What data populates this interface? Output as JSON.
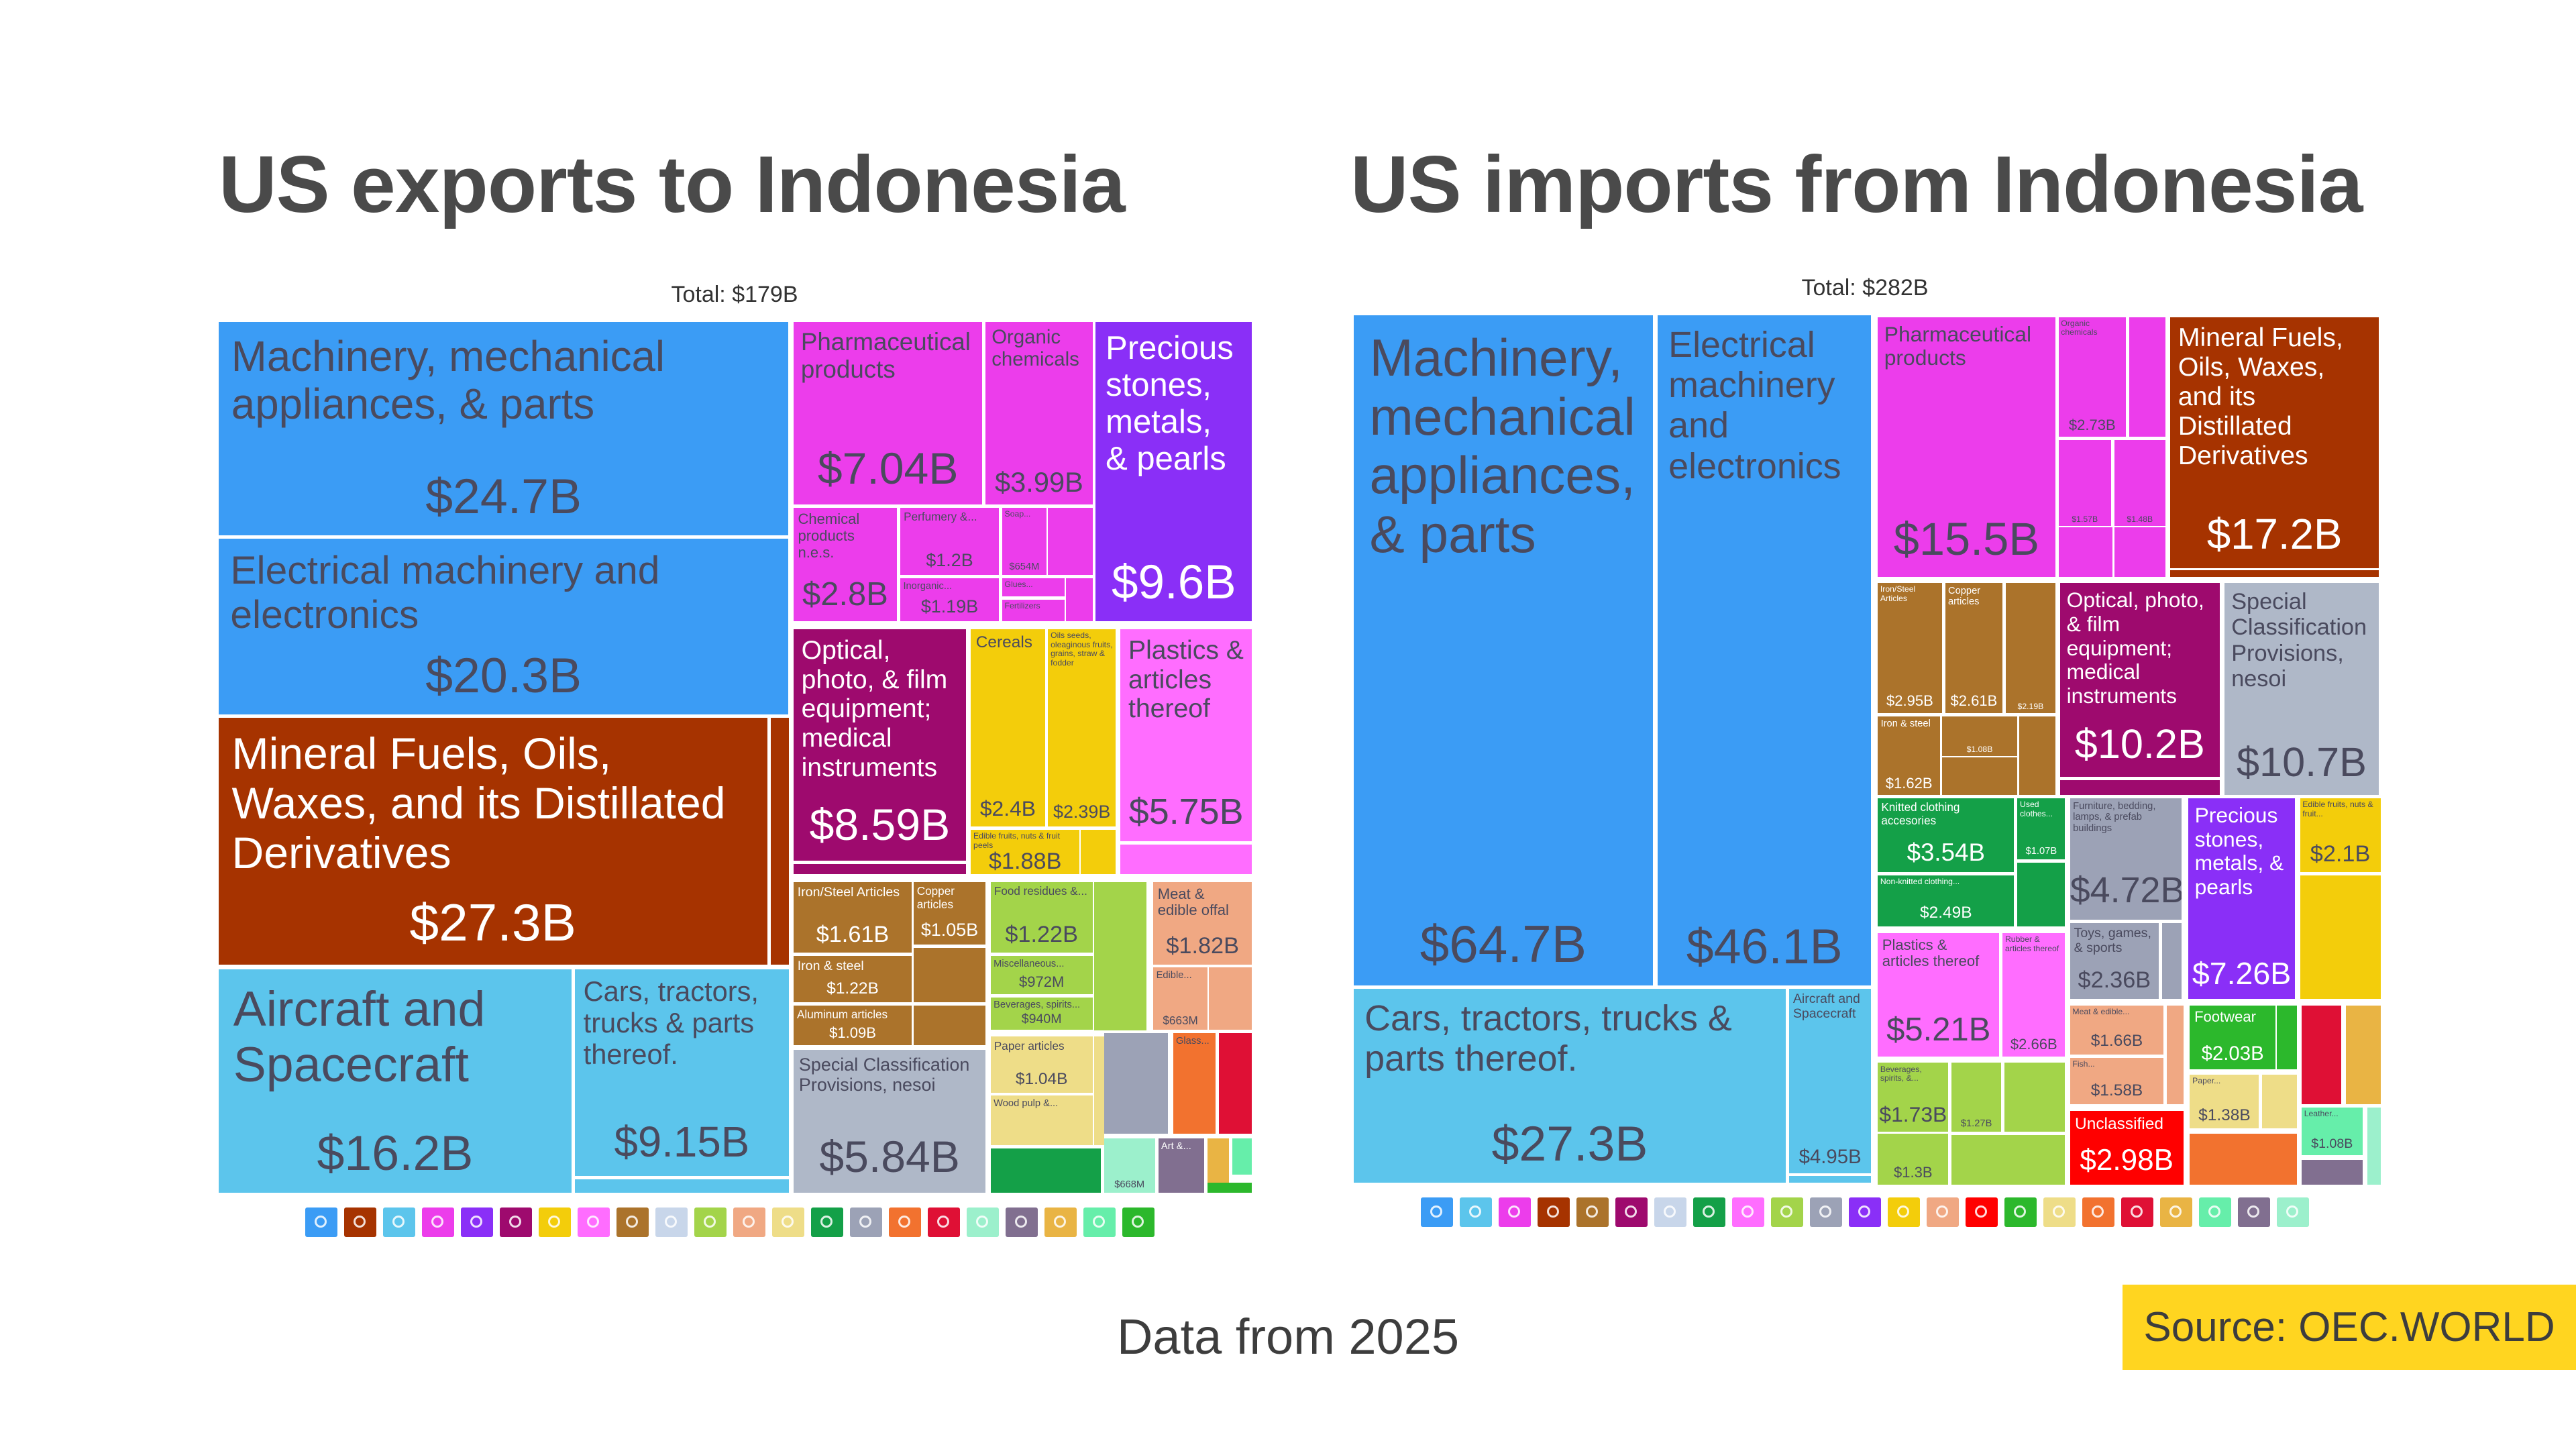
{
  "footer": {
    "note": "Data from 2025",
    "source": "Source: OEC.WORLD"
  },
  "chart_data": [
    {
      "type": "treemap",
      "title": "US exports to Indonesia",
      "total": "Total: $179B",
      "items": [
        {
          "label": "Machinery, mechanical appliances, & parts",
          "value": "$24.7B",
          "color": "#3b9cf5"
        },
        {
          "label": "Electrical machinery and electronics",
          "value": "$20.3B",
          "color": "#3b9cf5"
        },
        {
          "label": "Mineral Fuels, Oils, Waxes, and its Distillated Derivatives",
          "value": "$27.3B",
          "color": "#a63300"
        },
        {
          "color": "#a63300"
        },
        {
          "label": "Aircraft and Spacecraft",
          "value": "$16.2B",
          "color": "#5cc5ec"
        },
        {
          "label": "Cars, tractors, trucks & parts thereof.",
          "value": "$9.15B",
          "color": "#5cc5ec"
        },
        {
          "color": "#5cc5ec"
        },
        {
          "label": "Pharmaceutical products",
          "value": "$7.04B",
          "color": "#ec3deb"
        },
        {
          "label": "Organic chemicals",
          "value": "$3.99B",
          "color": "#ec3deb"
        },
        {
          "label": "Chemical products n.e.s.",
          "value": "$2.8B",
          "color": "#ec3deb"
        },
        {
          "label": "Perfumery &...",
          "value": "$1.2B",
          "color": "#ec3deb"
        },
        {
          "label": "Inorganic...",
          "value": "$1.19B",
          "color": "#ec3deb"
        },
        {
          "label": "Soap...",
          "value": "$654M",
          "color": "#ec3deb"
        },
        {
          "color": "#ec3deb"
        },
        {
          "label": "Glues...",
          "color": "#ec3deb"
        },
        {
          "label": "Fertilizers",
          "color": "#ec3deb"
        },
        {
          "color": "#ec3deb"
        },
        {
          "label": "Precious stones, metals, & pearls",
          "value": "$9.6B",
          "color": "#8a2ff7"
        },
        {
          "label": "Optical, photo, & film equipment; medical instruments",
          "value": "$8.59B",
          "color": "#9e0a6e"
        },
        {
          "color": "#9e0a6e"
        },
        {
          "label": "Cereals",
          "value": "$2.4B",
          "color": "#f3cd0b"
        },
        {
          "label": "Oils seeds, oleaginous fruits, grains, straw & fodder",
          "value": "$2.39B",
          "color": "#f3cd0b"
        },
        {
          "label": "Edible fruits, nuts & fruit peels",
          "value": "$1.88B",
          "color": "#f3cd0b"
        },
        {
          "color": "#f3cd0b"
        },
        {
          "label": "Plastics & articles thereof",
          "value": "$5.75B",
          "color": "#ff6dff"
        },
        {
          "color": "#ff6dff"
        },
        {
          "label": "Iron/Steel Articles",
          "value": "$1.61B",
          "color": "#ab732b"
        },
        {
          "label": "Copper articles",
          "value": "$1.05B",
          "color": "#ab732b"
        },
        {
          "label": "Iron & steel",
          "value": "$1.22B",
          "color": "#ab732b"
        },
        {
          "color": "#ab732b"
        },
        {
          "label": "Aluminum articles",
          "value": "$1.09B",
          "color": "#ab732b"
        },
        {
          "color": "#ab732b"
        },
        {
          "label": "Special Classification Provisions, nesoi",
          "value": "$5.84B",
          "color": "#afb8c8"
        },
        {
          "label": "Food residues &...",
          "value": "$1.22B",
          "color": "#a3d44a"
        },
        {
          "label": "Miscellaneous...",
          "value": "$972M",
          "color": "#a3d44a"
        },
        {
          "label": "Beverages, spirits...",
          "value": "$940M",
          "color": "#a3d44a"
        },
        {
          "color": "#a3d44a"
        },
        {
          "label": "Meat & edible offal",
          "value": "$1.82B",
          "color": "#f0a883"
        },
        {
          "label": "Edible...",
          "value": "$663M",
          "color": "#f0a883"
        },
        {
          "color": "#f0a883"
        },
        {
          "label": "Paper articles",
          "value": "$1.04B",
          "color": "#eedd88"
        },
        {
          "label": "Wood pulp &...",
          "color": "#eedd88"
        },
        {
          "color": "#eedd88"
        },
        {
          "color": "#14a048"
        },
        {
          "color": "#9ca2b6"
        },
        {
          "label": "Glass...",
          "color": "#f2722f"
        },
        {
          "color": "#df1035"
        },
        {
          "value": "$668M",
          "color": "#9cf0cc"
        },
        {
          "label": "Art &...",
          "color": "#816f90"
        },
        {
          "color": "#e9b444"
        },
        {
          "color": "#66eeaa"
        },
        {
          "color": "#2cb82c"
        }
      ],
      "legend_colors": [
        "#3b9cf5",
        "#a63300",
        "#5cc5ec",
        "#ec3deb",
        "#8a2ff7",
        "#9e0a6e",
        "#f3cd0b",
        "#ff6dff",
        "#ab732b",
        "#c8d6ea",
        "#a3d44a",
        "#f0a883",
        "#eedd88",
        "#14a048",
        "#9ca2b6",
        "#f2722f",
        "#df1035",
        "#9cf0cc",
        "#816f90",
        "#e9b444",
        "#66eeaa",
        "#2cb82c"
      ]
    },
    {
      "type": "treemap",
      "title": "US imports from Indonesia",
      "total": "Total: $282B",
      "items": [
        {
          "label": "Machinery, mechanical appliances, & parts",
          "value": "$64.7B",
          "color": "#3b9cf5"
        },
        {
          "label": "Electrical machinery and electronics",
          "value": "$46.1B",
          "color": "#3b9cf5"
        },
        {
          "label": "Cars, tractors, trucks & parts thereof.",
          "value": "$27.3B",
          "color": "#5cc5ec"
        },
        {
          "label": "Aircraft and Spacecraft",
          "value": "$4.95B",
          "color": "#5cc5ec"
        },
        {
          "color": "#5cc5ec"
        },
        {
          "label": "Pharmaceutical products",
          "value": "$15.5B",
          "color": "#ec3deb"
        },
        {
          "label": "Organic chemicals",
          "value": "$2.73B",
          "color": "#ec3deb"
        },
        {
          "color": "#ec3deb"
        },
        {
          "value": "$1.57B",
          "color": "#ec3deb"
        },
        {
          "value": "$1.48B",
          "color": "#ec3deb"
        },
        {
          "color": "#ec3deb"
        },
        {
          "color": "#ec3deb"
        },
        {
          "label": "Mineral Fuels, Oils, Waxes, and its Distillated Derivatives",
          "value": "$17.2B",
          "color": "#a63300"
        },
        {
          "color": "#a63300"
        },
        {
          "label": "Iron/Steel Articles",
          "value": "$2.95B",
          "color": "#ab732b"
        },
        {
          "label": "Copper articles",
          "value": "$2.61B",
          "color": "#ab732b"
        },
        {
          "value": "$2.19B",
          "color": "#ab732b"
        },
        {
          "label": "Iron & steel",
          "value": "$1.62B",
          "color": "#ab732b"
        },
        {
          "value": "$1.08B",
          "color": "#ab732b"
        },
        {
          "color": "#ab732b"
        },
        {
          "color": "#ab732b"
        },
        {
          "label": "Optical, photo, & film equipment; medical instruments",
          "value": "$10.2B",
          "color": "#9e0a6e"
        },
        {
          "color": "#9e0a6e"
        },
        {
          "label": "Special Classification Provisions, nesoi",
          "value": "$10.7B",
          "color": "#afb8c8"
        },
        {
          "label": "Knitted clothing accesories",
          "value": "$3.54B",
          "color": "#14a048"
        },
        {
          "label": "Non-knitted clothing...",
          "value": "$2.49B",
          "color": "#14a048"
        },
        {
          "label": "Used clothes...",
          "value": "$1.07B",
          "color": "#14a048"
        },
        {
          "color": "#14a048"
        },
        {
          "label": "Plastics & articles thereof",
          "value": "$5.21B",
          "color": "#ff6dff"
        },
        {
          "label": "Rubber & articles thereof",
          "value": "$2.66B",
          "color": "#ff6dff"
        },
        {
          "label": "Beverages, spirits, &...",
          "value": "$1.73B",
          "color": "#a3d44a"
        },
        {
          "value": "$1.3B",
          "color": "#a3d44a"
        },
        {
          "value": "$1.27B",
          "color": "#a3d44a"
        },
        {
          "color": "#a3d44a"
        },
        {
          "color": "#a3d44a"
        },
        {
          "label": "Furniture, bedding, lamps, & prefab buildings",
          "value": "$4.72B",
          "color": "#9ca2b6"
        },
        {
          "label": "Toys, games, & sports",
          "value": "$2.36B",
          "color": "#9ca2b6"
        },
        {
          "color": "#9ca2b6"
        },
        {
          "label": "Precious stones, metals, & pearls",
          "value": "$7.26B",
          "color": "#8a2ff7"
        },
        {
          "label": "Edible fruits, nuts & fruit...",
          "value": "$2.1B",
          "color": "#f3cd0b"
        },
        {
          "color": "#f3cd0b"
        },
        {
          "label": "Meat & edible...",
          "value": "$1.66B",
          "color": "#f0a883"
        },
        {
          "label": "Fish...",
          "value": "$1.58B",
          "color": "#f0a883"
        },
        {
          "color": "#f0a883"
        },
        {
          "label": "Unclassified",
          "value": "$2.98B",
          "color": "#ff0000"
        },
        {
          "label": "Footwear",
          "value": "$2.03B",
          "color": "#2cb82c"
        },
        {
          "color": "#2cb82c"
        },
        {
          "label": "Paper...",
          "value": "$1.38B",
          "color": "#eedd88"
        },
        {
          "color": "#eedd88"
        },
        {
          "color": "#f2722f"
        },
        {
          "color": "#df1035"
        },
        {
          "color": "#e9b444"
        },
        {
          "label": "Leather...",
          "value": "$1.08B",
          "color": "#66eeaa"
        },
        {
          "color": "#816f90"
        },
        {
          "color": "#9cf0cc"
        }
      ],
      "legend_colors": [
        "#3b9cf5",
        "#5cc5ec",
        "#ec3deb",
        "#a63300",
        "#ab732b",
        "#9e0a6e",
        "#c8d6ea",
        "#14a048",
        "#ff6dff",
        "#a3d44a",
        "#9ca2b6",
        "#8a2ff7",
        "#f3cd0b",
        "#f0a883",
        "#ff0000",
        "#2cb82c",
        "#eedd88",
        "#f2722f",
        "#df1035",
        "#e9b444",
        "#66eeaa",
        "#816f90",
        "#9cf0cc"
      ]
    }
  ]
}
